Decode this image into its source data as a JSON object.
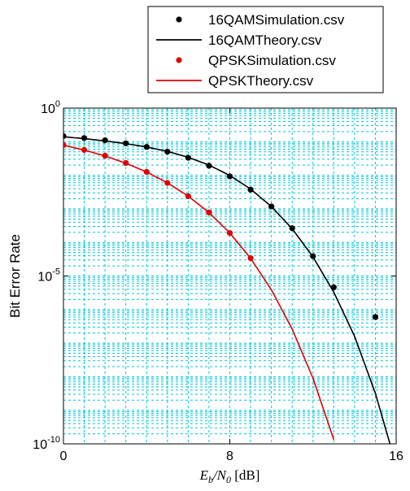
{
  "chart_data": {
    "type": "scatter",
    "title": "",
    "xlabel": {
      "base": "E",
      "sub_b": "b",
      "mid": "/N",
      "sub_0": "0",
      "unit": " [dB]"
    },
    "ylabel": "Bit Error Rate",
    "xlim": [
      0,
      16
    ],
    "ylim_log10": [
      -10,
      0
    ],
    "y_scale": "log",
    "x_ticks": [
      "0",
      "8",
      "16"
    ],
    "y_ticks": [
      {
        "base": "10",
        "exp": "0"
      },
      {
        "base": "10",
        "exp": "-5"
      },
      {
        "base": "10",
        "exp": "-10"
      }
    ],
    "grid": true,
    "grid_color": "#00c8d8",
    "legend_position": "top-right",
    "series": [
      {
        "name": "16QAMSimulation.csv",
        "kind": "markers",
        "color": "#000000",
        "x": [
          0,
          1,
          2,
          3,
          4,
          5,
          6,
          7,
          8,
          9,
          10,
          11,
          12,
          13,
          15
        ],
        "y": [
          0.1465,
          0.1286,
          0.1097,
          0.0895,
          0.0697,
          0.0504,
          0.0331,
          0.0192,
          0.00928,
          0.00372,
          0.00118,
          0.000265,
          3.9e-05,
          4.6e-06,
          6e-07
        ]
      },
      {
        "name": "16QAMTheory.csv",
        "kind": "line",
        "color": "#000000",
        "x": [
          0,
          1,
          2,
          3,
          4,
          5,
          6,
          7,
          8,
          9,
          10,
          11,
          12,
          13,
          14,
          15,
          16
        ],
        "y": [
          0.1405,
          0.1233,
          0.1055,
          0.0875,
          0.0695,
          0.0514,
          0.0343,
          0.0201,
          0.00986,
          0.00388,
          0.00117,
          0.000255,
          3.7e-05,
          3.3e-06,
          1.6e-07,
          3.2e-09,
          2.3e-11
        ]
      },
      {
        "name": "QPSKSimulation.csv",
        "kind": "markers",
        "color": "#e00000",
        "x": [
          0,
          1,
          2,
          3,
          4,
          5,
          6,
          7,
          8,
          9
        ],
        "y": [
          0.0797,
          0.0567,
          0.0381,
          0.0233,
          0.0126,
          0.00592,
          0.00238,
          0.00078,
          0.000191,
          3.4e-05
        ]
      },
      {
        "name": "QPSKTheory.csv",
        "kind": "line",
        "color": "#e00000",
        "x": [
          0,
          1,
          2,
          3,
          4,
          5,
          6,
          7,
          8,
          9,
          10,
          11,
          12,
          13
        ],
        "y": [
          0.0786,
          0.0563,
          0.0375,
          0.0229,
          0.0125,
          0.00595,
          0.00239,
          0.000773,
          0.000191,
          3.36e-05,
          3.87e-06,
          2.61e-07,
          9e-09,
          1.33e-10
        ]
      }
    ]
  }
}
